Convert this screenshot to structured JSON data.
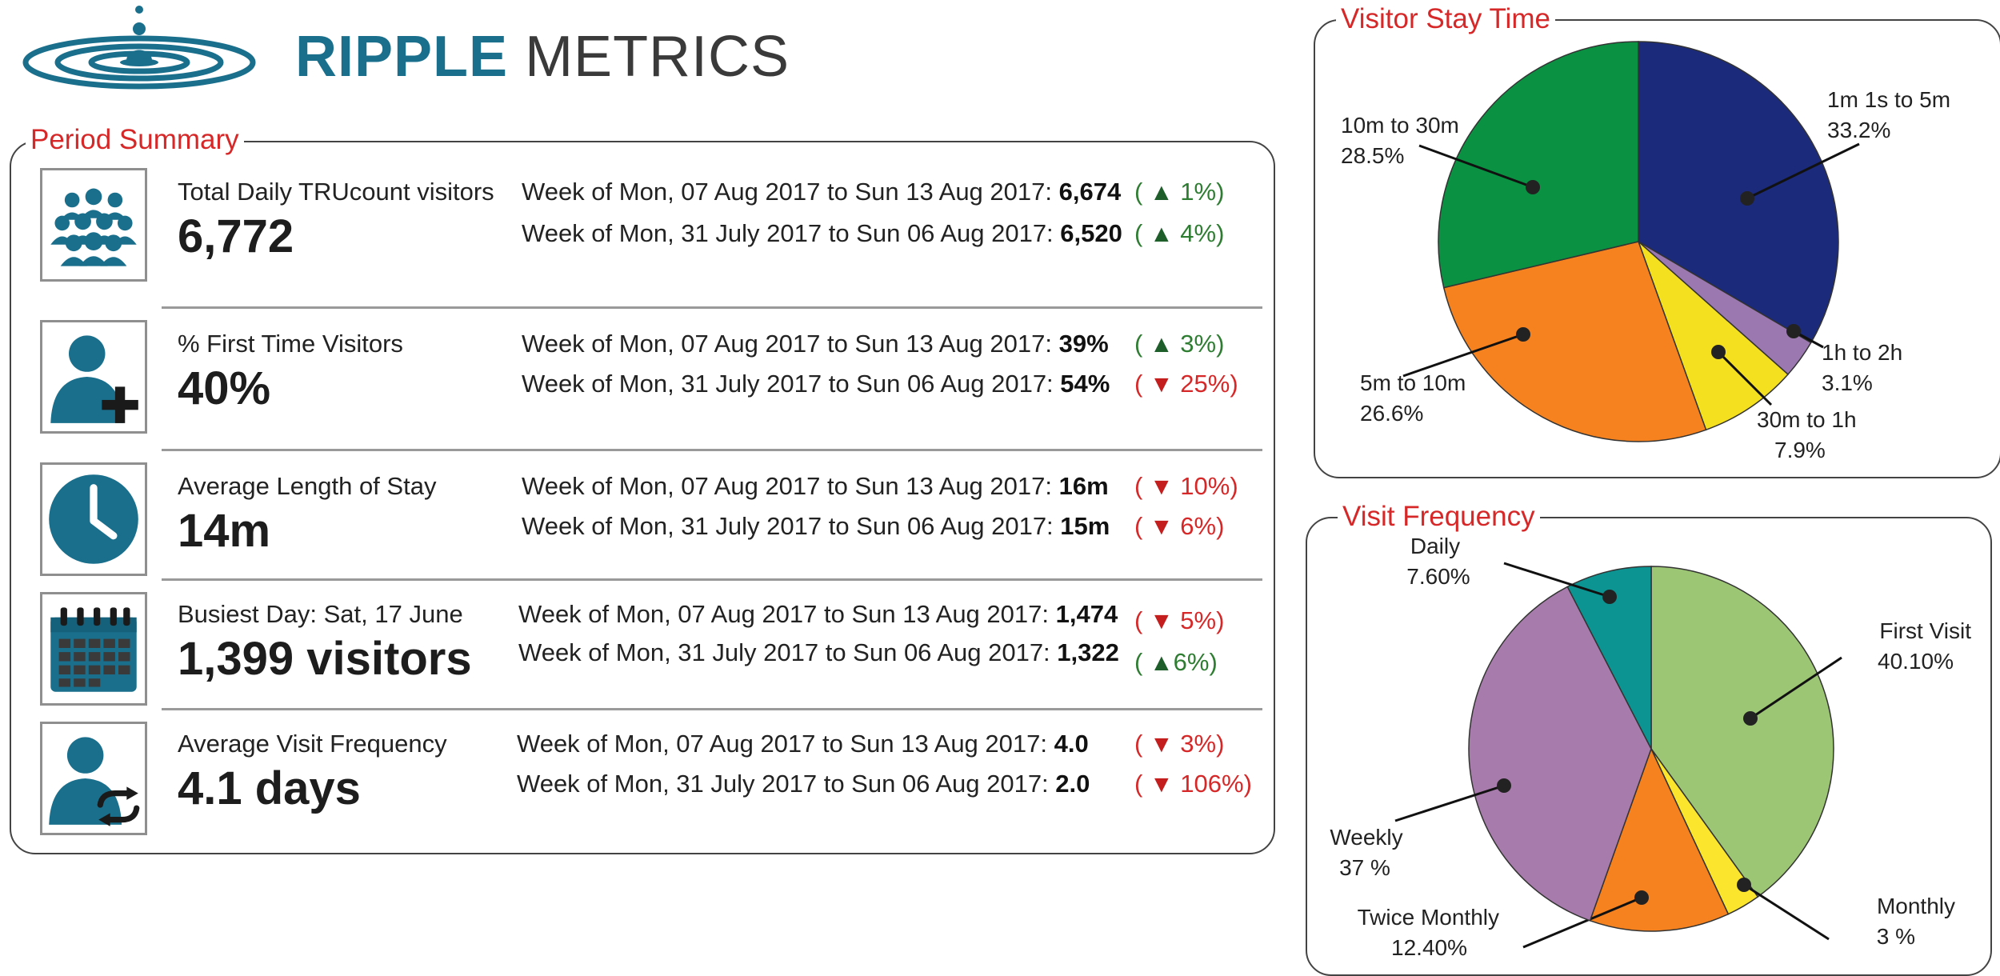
{
  "brand": {
    "word1": "RIPPLE",
    "word2": "METRICS",
    "color": "#1a6f8c"
  },
  "summary": {
    "title": "Period Summary",
    "rows": [
      {
        "icon": "users-group-icon",
        "label": "Total Daily TRUcount visitors",
        "value": "6,772",
        "weeks": [
          {
            "text": "Week of Mon, 07 Aug 2017 to Sun 13 Aug 2017:",
            "value": "6,674",
            "direction": "up",
            "change": "1%"
          },
          {
            "text": "Week of Mon, 31 July 2017 to Sun 06 Aug 2017:",
            "value": "6,520",
            "direction": "up",
            "change": "4%"
          }
        ]
      },
      {
        "icon": "user-add-icon",
        "label": "% First Time Visitors",
        "value": "40%",
        "weeks": [
          {
            "text": "Week of Mon, 07 Aug 2017 to Sun 13 Aug 2017:",
            "value": "39%",
            "direction": "up",
            "change": "3%"
          },
          {
            "text": "Week of Mon, 31 July 2017 to Sun 06 Aug 2017:",
            "value": "54%",
            "direction": "down",
            "change": "25%"
          }
        ]
      },
      {
        "icon": "clock-icon",
        "label": "Average Length of Stay",
        "value": "14m",
        "weeks": [
          {
            "text": "Week of Mon, 07 Aug 2017 to Sun 13 Aug 2017:",
            "value": "16m",
            "direction": "down",
            "change": "10%"
          },
          {
            "text": "Week of Mon, 31 July 2017 to Sun 06 Aug 2017:",
            "value": "15m",
            "direction": "down",
            "change": "6%"
          }
        ]
      },
      {
        "icon": "calendar-icon",
        "label": "Busiest Day: Sat, 17 June",
        "value": "1,399 visitors",
        "weeks": [
          {
            "text": "Week of Mon, 07 Aug 2017 to Sun 13 Aug 2017:",
            "value": "1,474",
            "direction": "down",
            "change": "5%"
          },
          {
            "text": "Week of Mon, 31 July 2017 to Sun 06 Aug 2017:",
            "value": "1,322",
            "direction": "up",
            "change": "6%"
          }
        ]
      },
      {
        "icon": "user-repeat-icon",
        "label": "Average Visit Frequency",
        "value": "4.1 days",
        "weeks": [
          {
            "text": "Week of Mon, 07 Aug 2017 to Sun 13 Aug 2017:",
            "value": "4.0",
            "direction": "down",
            "change": "3%"
          },
          {
            "text": "Week of Mon, 31 July 2017 to Sun 06 Aug 2017:",
            "value": "2.0",
            "direction": "down",
            "change": "106%"
          }
        ]
      }
    ],
    "colors": {
      "up": "#2e7d32",
      "down": "#d62828",
      "icon": "#1a6f8c"
    }
  },
  "chart_data": [
    {
      "type": "pie",
      "title": "Visitor Stay Time",
      "slices": [
        {
          "label": "1m 1s to 5m",
          "value": 33.2,
          "display": "33.2%",
          "color": "#1b2a7a"
        },
        {
          "label": "1h to 2h",
          "value": 3.1,
          "display": "3.1%",
          "color": "#9c78b0"
        },
        {
          "label": "30m to 1h",
          "value": 7.9,
          "display": "7.9%",
          "color": "#f5e020"
        },
        {
          "label": "5m to 10m",
          "value": 26.6,
          "display": "26.6%",
          "color": "#f5821f"
        },
        {
          "label": "10m to 30m",
          "value": 28.5,
          "display": "28.5%",
          "color": "#0a9142"
        }
      ],
      "start": "12 o'clock",
      "direction": "clockwise",
      "legend": "none"
    },
    {
      "type": "pie",
      "title": "Visit Frequency",
      "slices": [
        {
          "label": "First Visit",
          "value": 40.1,
          "display": "40.10%",
          "color": "#9cc574"
        },
        {
          "label": "Monthly",
          "value": 3,
          "display": "3 %",
          "color": "#fbe62d"
        },
        {
          "label": "Twice Monthly",
          "value": 12.4,
          "display": "12.40%",
          "color": "#f5821f"
        },
        {
          "label": "Weekly",
          "value": 37,
          "display": "37 %",
          "color": "#a77bab"
        },
        {
          "label": "Daily",
          "value": 7.6,
          "display": "7.60%",
          "color": "#0b9492"
        }
      ],
      "start": "12 o'clock",
      "direction": "clockwise",
      "legend": "none"
    }
  ]
}
